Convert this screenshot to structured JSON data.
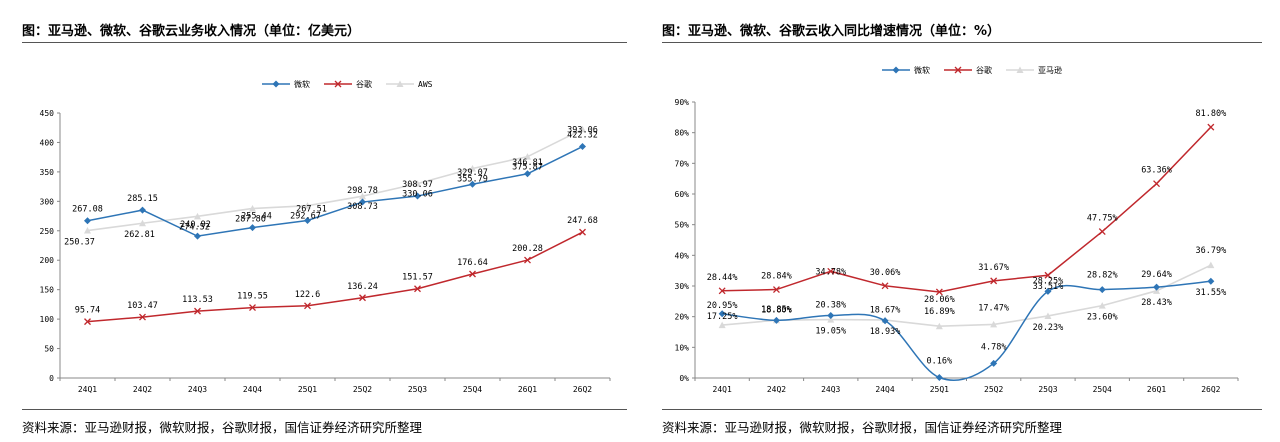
{
  "charts": [
    {
      "title": "图：亚马逊、微软、谷歌云业务收入情况（单位：亿美元）",
      "source": "资料来源：亚马逊财报，微软财报，谷歌财报，国信证券经济研究所整理"
    },
    {
      "title": "图：亚马逊、微软、谷歌云收入同比增速情况（单位：%）",
      "source": "资料来源：亚马逊财报，微软财报，谷歌财报，国信证券经济研究所整理"
    }
  ],
  "chart_data": [
    {
      "type": "line",
      "title": "图：亚马逊、微软、谷歌云业务收入情况（单位：亿美元）",
      "categories": [
        "24Q1",
        "24Q2",
        "24Q3",
        "24Q4",
        "25Q1",
        "25Q2",
        "25Q3",
        "25Q4",
        "26Q1",
        "26Q2"
      ],
      "ylim": [
        0,
        450
      ],
      "yticks": [
        "0",
        "50",
        "100",
        "150",
        "200",
        "250",
        "300",
        "350",
        "400",
        "450"
      ],
      "legend_position": "top-center",
      "grid": false,
      "series": [
        {
          "name": "微软",
          "color": "#2e75b6",
          "marker": "diamond",
          "smooth": false,
          "values": [
            267.08,
            285.15,
            240.92,
            255.44,
            267.51,
            298.78,
            308.97,
            329.07,
            346.81,
            393.06
          ],
          "labels": [
            "267.08",
            "285.15",
            "240.92",
            "255.44",
            "267.51",
            "298.78",
            "308.97",
            "329.07",
            "346.81",
            "393.06"
          ]
        },
        {
          "name": "谷歌",
          "color": "#c0282d",
          "marker": "x",
          "smooth": false,
          "values": [
            95.74,
            103.47,
            113.53,
            119.55,
            122.6,
            136.24,
            151.57,
            176.64,
            200.28,
            247.68
          ],
          "labels": [
            "95.74",
            "103.47",
            "113.53",
            "119.55",
            "122.6",
            "136.24",
            "151.57",
            "176.64",
            "200.28",
            "247.68"
          ]
        },
        {
          "name": "AWS",
          "color": "#d9d9d9",
          "marker": "triangle",
          "smooth": false,
          "values": [
            250.37,
            262.81,
            274.52,
            287.86,
            292.67,
            308.73,
            330.06,
            355.79,
            375.87,
            422.32
          ],
          "labels": [
            "250.37",
            "262.81",
            "274.52",
            "287.86",
            "292.67",
            "308.73",
            "330.06",
            "355.79",
            "375.87",
            "422.32"
          ]
        }
      ]
    },
    {
      "type": "line",
      "title": "图：亚马逊、微软、谷歌云收入同比增速情况（单位：%）",
      "categories": [
        "24Q1",
        "24Q2",
        "24Q3",
        "24Q4",
        "25Q1",
        "25Q2",
        "25Q3",
        "25Q4",
        "26Q1",
        "26Q2"
      ],
      "ylim": [
        0,
        90
      ],
      "yticks": [
        "0%",
        "10%",
        "20%",
        "30%",
        "40%",
        "50%",
        "60%",
        "70%",
        "80%",
        "90%"
      ],
      "legend_position": "top-center",
      "grid": false,
      "series": [
        {
          "name": "微软",
          "color": "#2e75b6",
          "marker": "diamond",
          "smooth": true,
          "values": [
            20.95,
            18.8,
            20.38,
            18.67,
            0.16,
            4.78,
            28.25,
            28.82,
            29.64,
            31.55
          ],
          "labels": [
            "20.95%",
            "18.80%",
            "20.38%",
            "18.67%",
            "0.16%",
            "4.78%",
            "28.25%",
            "28.82%",
            "29.64%",
            "31.55%"
          ]
        },
        {
          "name": "谷歌",
          "color": "#c0282d",
          "marker": "x",
          "smooth": false,
          "values": [
            28.44,
            28.84,
            34.78,
            30.06,
            28.06,
            31.67,
            33.51,
            47.75,
            63.36,
            81.8
          ],
          "labels": [
            "28.44%",
            "28.84%",
            "34.78%",
            "30.06%",
            "28.06%",
            "31.67%",
            "33.51%",
            "47.75%",
            "63.36%",
            "81.80%"
          ]
        },
        {
          "name": "亚马逊",
          "color": "#d9d9d9",
          "marker": "triangle",
          "smooth": false,
          "values": [
            17.25,
            18.85,
            19.05,
            18.93,
            16.89,
            17.47,
            20.23,
            23.6,
            28.43,
            36.79
          ],
          "labels": [
            "17.25%",
            "18.85%",
            "19.05%",
            "18.93%",
            "16.89%",
            "17.47%",
            "20.23%",
            "23.60%",
            "28.43%",
            "36.79%"
          ]
        }
      ]
    }
  ]
}
